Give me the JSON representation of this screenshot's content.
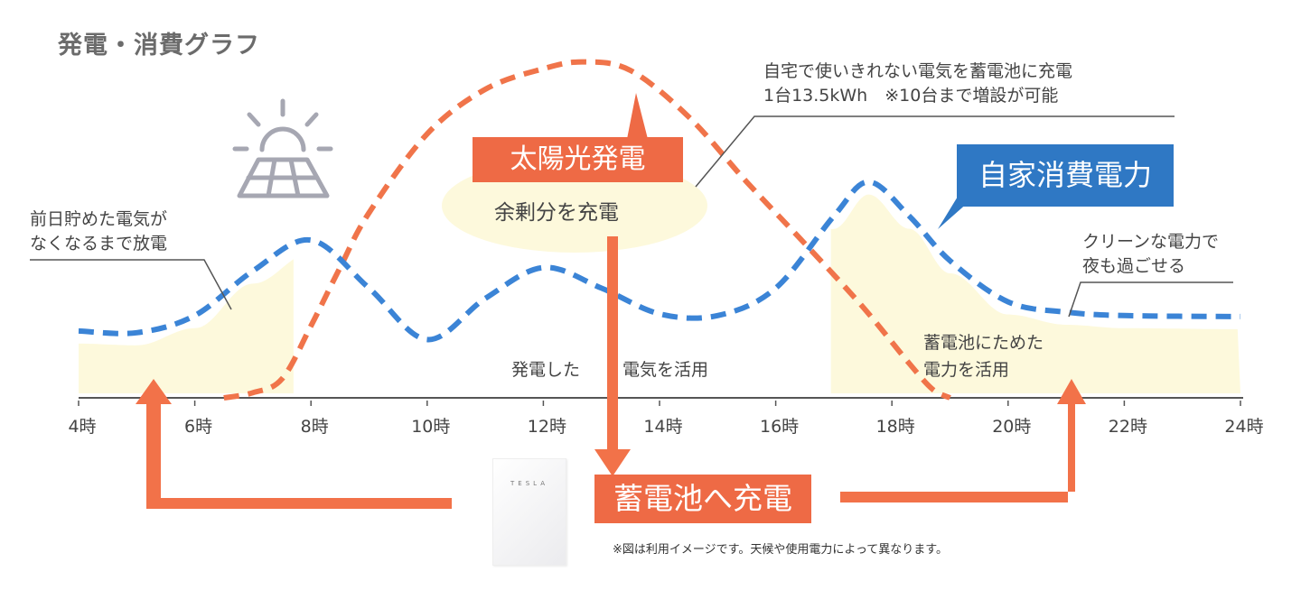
{
  "title": "発電・消費グラフ",
  "labels": {
    "solar": "太陽光発電",
    "surplus": "余剰分を充電",
    "self_consumption": "自家消費電力",
    "charge_battery": "蓄電池へ充電",
    "use_generated_left": "発電した",
    "use_generated_right": "電気を活用"
  },
  "notes": {
    "morning_line1": "前日貯めた電気が",
    "morning_line2": "なくなるまで放電",
    "battery_line1": "自宅で使いきれない電気を蓄電池に充電",
    "battery_line2": "1台13.5kWh　※10台まで増設が可能",
    "night_line1": "クリーンな電力で",
    "night_line2": "夜も過ごせる",
    "stored_line1": "蓄電池にためた",
    "stored_line2": "電力を活用"
  },
  "battery_brand": "TESLA",
  "disclaimer": "※図は利用イメージです。天候や使用電力によって異なります。",
  "icons": {
    "solar_panel": "solar-panel-sun-icon",
    "battery": "tesla-powerwall-image"
  },
  "colors": {
    "generation": "#f0744a",
    "consumption": "#3b84d6",
    "generation_label_bg": "#ee6a45",
    "consumption_label_bg": "#2f78c4",
    "fill": "#fdf9dc",
    "arrow": "#f27249"
  },
  "chart_data": {
    "type": "line",
    "title": "発電・消費グラフ",
    "xlabel": "",
    "ylabel": "",
    "xlim": [
      4,
      24
    ],
    "ylim": [
      0,
      100
    ],
    "tick_labels": [
      "4時",
      "6時",
      "8時",
      "10時",
      "12時",
      "14時",
      "16時",
      "18時",
      "20時",
      "22時",
      "24時"
    ],
    "tick_values": [
      4,
      6,
      8,
      10,
      12,
      14,
      16,
      18,
      20,
      22,
      24
    ],
    "series": [
      {
        "name": "太陽光発電",
        "style": "dashed",
        "x": [
          6.5,
          7.0,
          7.5,
          8.0,
          8.5,
          9.0,
          10.0,
          11.0,
          12.0,
          12.7,
          13.5,
          14.5,
          15.5,
          16.5,
          17.5,
          18.3,
          18.7,
          19.0
        ],
        "y": [
          0,
          1.5,
          5.5,
          21,
          38,
          54,
          77,
          90,
          96,
          98,
          95.5,
          82,
          63,
          45,
          26.5,
          10,
          2.5,
          0
        ]
      },
      {
        "name": "自家消費電力",
        "style": "dashed",
        "x": [
          4,
          5,
          6,
          7,
          8,
          9,
          10,
          11,
          12,
          13,
          14,
          15,
          16,
          17,
          17.6,
          18.3,
          19,
          20,
          21,
          22,
          24
        ],
        "y": [
          19.5,
          19,
          24,
          37,
          46,
          32,
          17,
          29,
          38,
          32,
          24.5,
          24,
          32,
          53,
          63,
          53,
          40,
          28,
          25,
          24,
          23.7
        ]
      }
    ],
    "regions": [
      {
        "name": "前日貯めた電気の放電",
        "x": [
          4,
          7.7
        ]
      },
      {
        "name": "蓄電池にためた電力を活用",
        "x": [
          16.8,
          24
        ]
      }
    ]
  }
}
